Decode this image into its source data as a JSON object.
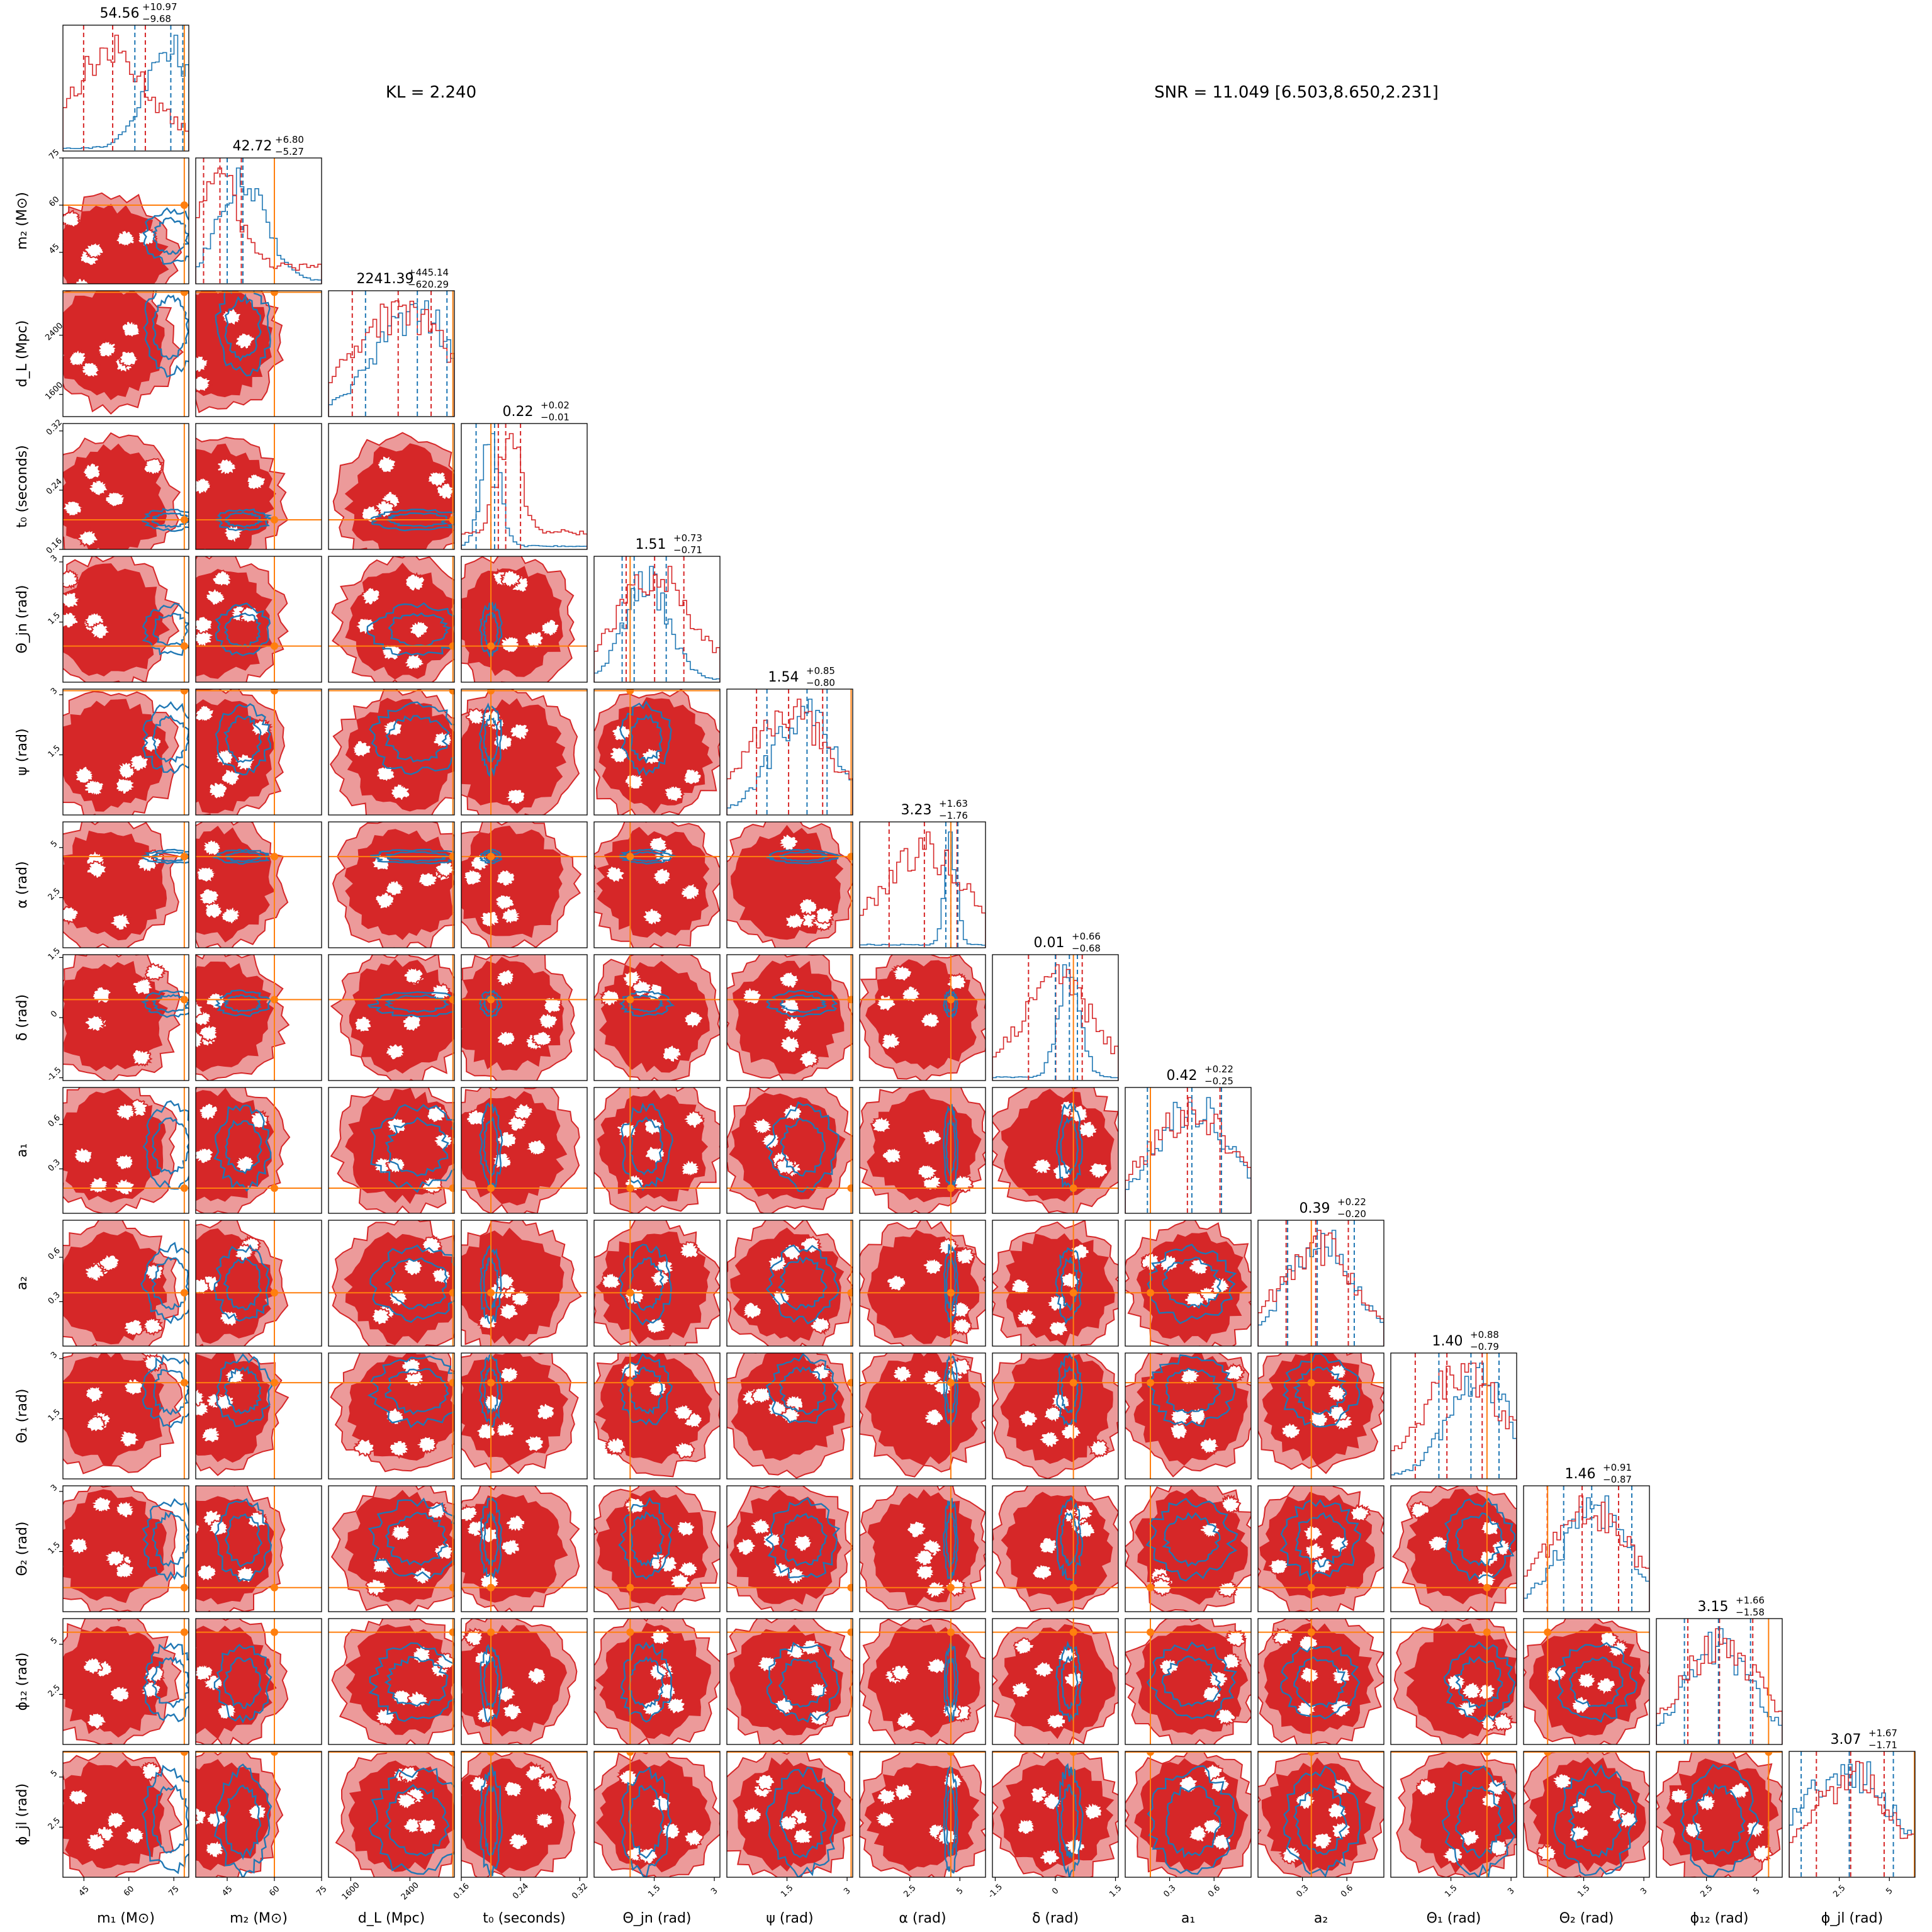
{
  "header": {
    "kl": "KL = 2.240",
    "snr": "SNR = 11.049 [6.503,8.650,2.231]"
  },
  "colors": {
    "red": "#d62728",
    "red_light": "#ec9a9a",
    "blue": "#1f77b4",
    "orange": "#ff7f0e"
  },
  "chart_data": {
    "type": "corner",
    "description_free": true,
    "parameters": [
      {
        "label": "m₁ (M⊙)",
        "symbol": "m",
        "sub": "1",
        "unit": "(M⊙)",
        "range": [
          38,
          80
        ],
        "ticks": [
          45,
          60,
          75
        ],
        "truth": 78.5,
        "title": {
          "value": "54.56",
          "plus": "+10.97",
          "minus": "−9.68"
        },
        "red_q": [
          44.9,
          54.6,
          65.5
        ],
        "blue_q": [
          62,
          74,
          78
        ],
        "red_center": 54,
        "blue_center": 74
      },
      {
        "label": "m₂ (M⊙)",
        "symbol": "m",
        "sub": "2",
        "unit": "(M⊙)",
        "range": [
          35,
          75
        ],
        "ticks": [
          45,
          60,
          75
        ],
        "truth": 60,
        "title": {
          "value": "42.72",
          "plus": "+6.80",
          "minus": "−5.27"
        },
        "red_q": [
          37.5,
          42.7,
          49.5
        ],
        "blue_q": [
          45,
          50,
          60
        ],
        "red_center": 42,
        "blue_center": 50
      },
      {
        "label": "d_L (Mpc)",
        "symbol": "d",
        "sub": "L",
        "unit": "(Mpc)",
        "range": [
          1300,
          3000
        ],
        "ticks": [
          1600,
          2400
        ],
        "truth": 2980,
        "title": {
          "value": "2241.39",
          "plus": "+445.14",
          "minus": "−620.29"
        },
        "red_q": [
          1621,
          2241,
          2686
        ],
        "blue_q": [
          1800,
          2500,
          2900
        ],
        "red_center": 2300,
        "blue_center": 2500
      },
      {
        "label": "t₀ (seconds)",
        "symbol": "t",
        "sub": "0",
        "unit": "(seconds)",
        "range": [
          0.16,
          0.33
        ],
        "ticks": [
          0.16,
          0.24,
          0.32
        ],
        "truth": 0.2,
        "title": {
          "value": "0.22",
          "plus": "+0.02",
          "minus": "−0.01"
        },
        "red_q": [
          0.21,
          0.22,
          0.24
        ],
        "blue_q": [
          0.18,
          0.2,
          0.205
        ],
        "red_center": 0.225,
        "blue_center": 0.2
      },
      {
        "label": "Θ_jn (rad)",
        "symbol": "Θ",
        "sub": "jn",
        "unit": "(rad)",
        "range": [
          0,
          3.14
        ],
        "ticks": [
          1.5,
          3.0
        ],
        "truth": 0.9,
        "title": {
          "value": "1.51",
          "plus": "+0.73",
          "minus": "−0.71"
        },
        "red_q": [
          0.8,
          1.51,
          2.24
        ],
        "blue_q": [
          0.7,
          1.0,
          1.8
        ],
        "red_center": 1.5,
        "blue_center": 1.3
      },
      {
        "label": "ψ (rad)",
        "symbol": "ψ",
        "sub": "",
        "unit": "(rad)",
        "range": [
          0,
          3.14
        ],
        "ticks": [
          1.5,
          3.0
        ],
        "truth": 3.1,
        "title": {
          "value": "1.54",
          "plus": "+0.85",
          "minus": "−0.80"
        },
        "red_q": [
          0.74,
          1.54,
          2.39
        ],
        "blue_q": [
          1.0,
          2.0,
          2.5
        ],
        "red_center": 1.5,
        "blue_center": 1.9
      },
      {
        "label": "α (rad)",
        "symbol": "α",
        "sub": "",
        "unit": "(rad)",
        "range": [
          0,
          6.28
        ],
        "ticks": [
          2.5,
          5.0
        ],
        "truth": 4.55,
        "title": {
          "value": "3.23",
          "plus": "+1.63",
          "minus": "−1.76"
        },
        "red_q": [
          1.47,
          3.23,
          4.86
        ],
        "blue_q": [
          4.3,
          4.55,
          4.9
        ],
        "red_center": 3.2,
        "blue_center": 4.55
      },
      {
        "label": "δ (rad)",
        "symbol": "δ",
        "sub": "",
        "unit": "(rad)",
        "range": [
          -1.57,
          1.57
        ],
        "ticks": [
          -1.5,
          0.0,
          1.5
        ],
        "truth": 0.45,
        "title": {
          "value": "0.01",
          "plus": "+0.66",
          "minus": "−0.68"
        },
        "red_q": [
          -0.67,
          0.01,
          0.67
        ],
        "blue_q": [
          0.0,
          0.35,
          0.55
        ],
        "red_center": 0.05,
        "blue_center": 0.35
      },
      {
        "label": "a₁",
        "symbol": "a",
        "sub": "1",
        "unit": "",
        "range": [
          0,
          0.85
        ],
        "ticks": [
          0.3,
          0.6
        ],
        "truth": 0.17,
        "title": {
          "value": "0.42",
          "plus": "+0.22",
          "minus": "−0.25"
        },
        "red_q": [
          0.17,
          0.42,
          0.64
        ],
        "blue_q": [
          0.15,
          0.45,
          0.65
        ],
        "red_center": 0.45,
        "blue_center": 0.45
      },
      {
        "label": "a₂",
        "symbol": "a",
        "sub": "2",
        "unit": "",
        "range": [
          0,
          0.85
        ],
        "ticks": [
          0.3,
          0.6
        ],
        "truth": 0.36,
        "title": {
          "value": "0.39",
          "plus": "+0.22",
          "minus": "−0.20"
        },
        "red_q": [
          0.19,
          0.39,
          0.61
        ],
        "blue_q": [
          0.2,
          0.4,
          0.65
        ],
        "red_center": 0.4,
        "blue_center": 0.42
      },
      {
        "label": "Θ₁ (rad)",
        "symbol": "Θ",
        "sub": "1",
        "unit": "(rad)",
        "range": [
          0,
          3.14
        ],
        "ticks": [
          1.5,
          3.0
        ],
        "truth": 2.4,
        "title": {
          "value": "1.40",
          "plus": "+0.88",
          "minus": "−0.79"
        },
        "red_q": [
          0.61,
          1.4,
          2.28
        ],
        "blue_q": [
          1.2,
          2.0,
          2.7
        ],
        "red_center": 1.8,
        "blue_center": 2.2
      },
      {
        "label": "Θ₂ (rad)",
        "symbol": "Θ",
        "sub": "2",
        "unit": "(rad)",
        "range": [
          0,
          3.14
        ],
        "ticks": [
          1.5,
          3.0
        ],
        "truth": 0.6,
        "title": {
          "value": "1.46",
          "plus": "+0.91",
          "minus": "−0.87"
        },
        "red_q": [
          0.59,
          1.46,
          2.37
        ],
        "blue_q": [
          1.0,
          1.7,
          2.7
        ],
        "red_center": 1.6,
        "blue_center": 1.8
      },
      {
        "label": "ϕ₁₂ (rad)",
        "symbol": "ϕ",
        "sub": "12",
        "unit": "(rad)",
        "range": [
          0,
          6.28
        ],
        "ticks": [
          2.5,
          5.0
        ],
        "truth": 5.6,
        "title": {
          "value": "3.15",
          "plus": "+1.66",
          "minus": "−1.58"
        },
        "red_q": [
          1.57,
          3.15,
          4.81
        ],
        "blue_q": [
          1.4,
          3.1,
          4.7
        ],
        "red_center": 3.2,
        "blue_center": 3.1
      },
      {
        "label": "ϕ_jl (rad)",
        "symbol": "ϕ",
        "sub": "jl",
        "unit": "(rad)",
        "range": [
          0,
          6.28
        ],
        "ticks": [
          2.5,
          5.0
        ],
        "truth": 6.25,
        "title": {
          "value": "3.07",
          "plus": "+1.67",
          "minus": "−1.71"
        },
        "red_q": [
          1.36,
          3.07,
          4.74
        ],
        "blue_q": [
          0.6,
          3.0,
          5.2
        ],
        "red_center": 3.1,
        "blue_center": 2.8
      }
    ]
  }
}
